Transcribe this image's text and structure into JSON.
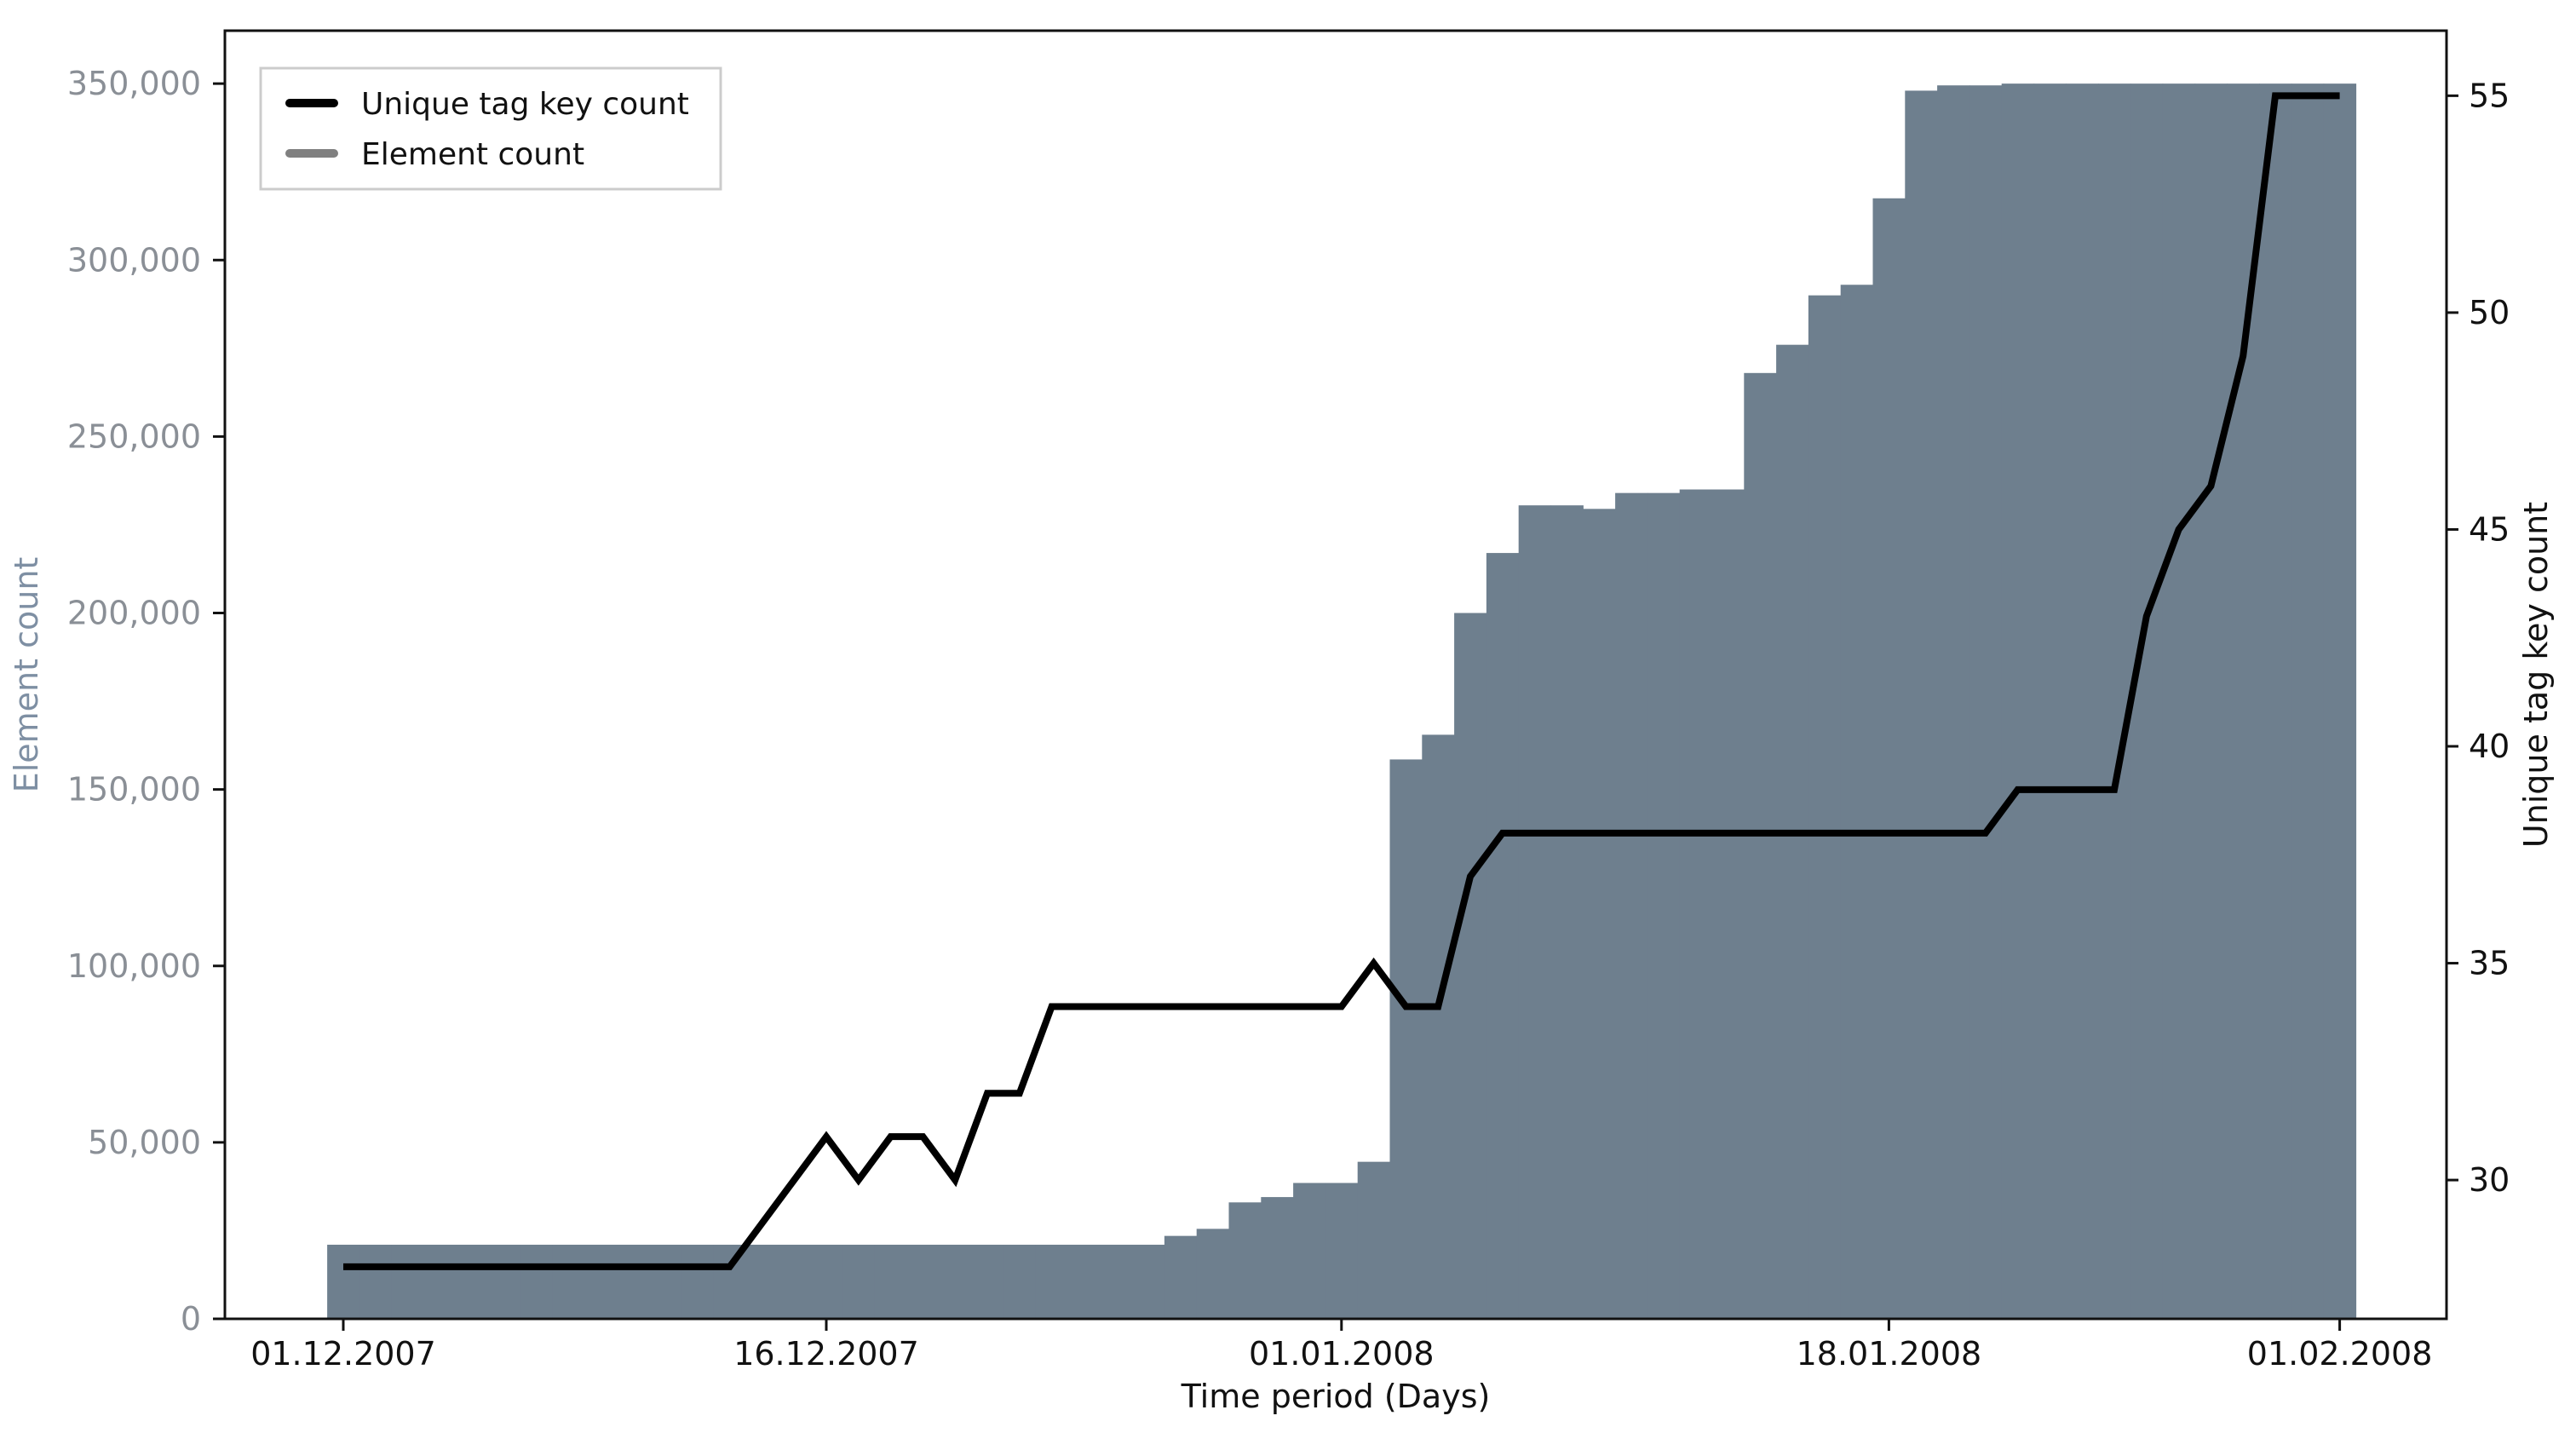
{
  "chart_data": {
    "type": "bar+line",
    "x_tick_labels": [
      "01.12.2007",
      "16.12.2007",
      "01.01.2008",
      "18.01.2008",
      "01.02.2008"
    ],
    "x_tick_days": [
      0,
      15,
      31,
      48,
      62
    ],
    "xlabel": "Time period (Days)",
    "ylabel_left": "Element count",
    "ylabel_right": "Unique tag key count",
    "ylim_left": [
      0,
      365000
    ],
    "ylim_right": [
      26.8,
      56.5
    ],
    "y_ticks_left": [
      0,
      50000,
      100000,
      150000,
      200000,
      250000,
      300000,
      350000
    ],
    "y_ticks_left_labels": [
      "0",
      "50,000",
      "100,000",
      "150,000",
      "200,000",
      "250,000",
      "300,000",
      "350,000"
    ],
    "y_ticks_right": [
      30,
      35,
      40,
      45,
      50,
      55
    ],
    "legend_position": "top-left",
    "grid": false,
    "colors": {
      "bars": "#6e7f8e",
      "line": "#000000",
      "legend_bar_swatch": "#808080"
    },
    "series": [
      {
        "name": "Element count",
        "kind": "bar",
        "axis": "left",
        "x_days": [
          0,
          1,
          2,
          3,
          4,
          5,
          6,
          7,
          8,
          9,
          10,
          11,
          12,
          13,
          14,
          15,
          16,
          17,
          18,
          19,
          20,
          21,
          22,
          23,
          24,
          25,
          26,
          27,
          28,
          29,
          30,
          31,
          32,
          33,
          34,
          35,
          36,
          37,
          38,
          39,
          40,
          41,
          42,
          43,
          44,
          45,
          46,
          47,
          48,
          49,
          50,
          51,
          52,
          53,
          54,
          55,
          56,
          57,
          58,
          59,
          60,
          61,
          62
        ],
        "values": [
          21000,
          21000,
          21000,
          21000,
          21000,
          21000,
          21000,
          21000,
          21000,
          21000,
          21000,
          21000,
          21000,
          21000,
          21000,
          21000,
          21000,
          21000,
          21000,
          21000,
          21000,
          21000,
          21000,
          21000,
          21000,
          21000,
          23500,
          25500,
          33000,
          34500,
          38500,
          38500,
          44500,
          158500,
          165500,
          200000,
          217000,
          230500,
          230500,
          229500,
          234000,
          234000,
          235000,
          235000,
          268000,
          276000,
          290000,
          293000,
          317500,
          348000,
          349500,
          349500,
          350000,
          350000,
          350000,
          350000,
          350000,
          350000,
          350000,
          350000,
          350000,
          350000,
          350000
        ]
      },
      {
        "name": "Unique tag key count",
        "kind": "line",
        "axis": "right",
        "x_days": [
          0,
          1,
          2,
          3,
          4,
          5,
          6,
          7,
          8,
          9,
          10,
          11,
          12,
          13,
          14,
          15,
          16,
          17,
          18,
          19,
          20,
          21,
          22,
          23,
          24,
          25,
          26,
          27,
          28,
          29,
          30,
          31,
          32,
          33,
          34,
          35,
          36,
          37,
          38,
          39,
          40,
          41,
          42,
          43,
          44,
          45,
          46,
          47,
          48,
          49,
          50,
          51,
          52,
          53,
          54,
          55,
          56,
          57,
          58,
          59,
          60,
          61,
          62
        ],
        "values": [
          28,
          28,
          28,
          28,
          28,
          28,
          28,
          28,
          28,
          28,
          28,
          28,
          28,
          29,
          30,
          31,
          30,
          31,
          31,
          30,
          32,
          32,
          34,
          34,
          34,
          34,
          34,
          34,
          34,
          34,
          34,
          34,
          35,
          34,
          34,
          37,
          38,
          38,
          38,
          38,
          38,
          38,
          38,
          38,
          38,
          38,
          38,
          38,
          38,
          38,
          38,
          38,
          39,
          39,
          39,
          39,
          43,
          45,
          46,
          49,
          55,
          55,
          55
        ]
      }
    ]
  }
}
